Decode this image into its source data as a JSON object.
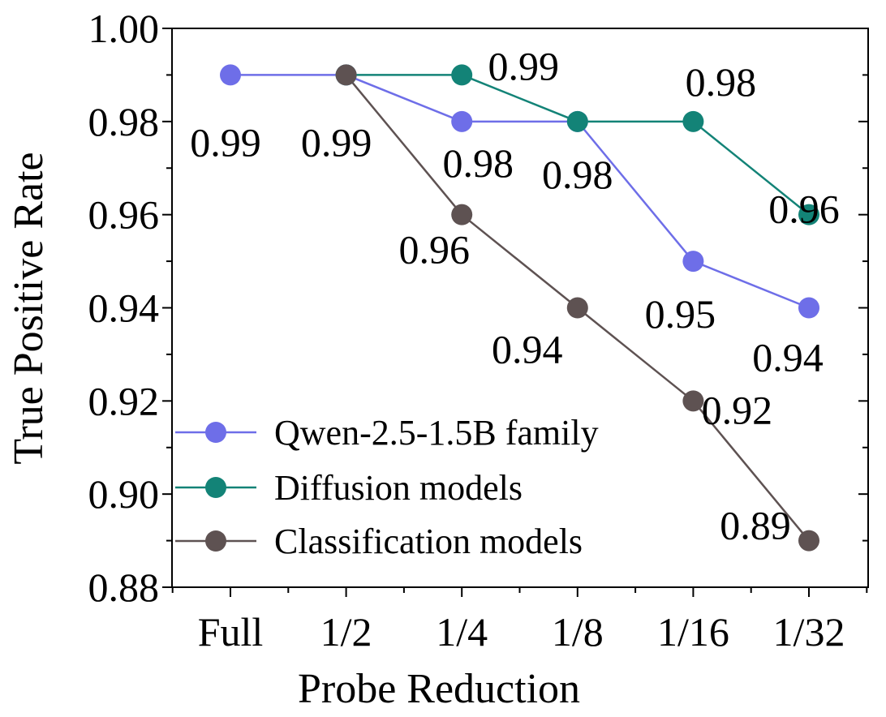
{
  "chart_data": {
    "type": "line",
    "title": "",
    "xlabel": "Probe Reduction",
    "ylabel": "True Positive Rate",
    "categories": [
      "Full",
      "1/2",
      "1/4",
      "1/8",
      "1/16",
      "1/32"
    ],
    "ylim": [
      0.88,
      1.0
    ],
    "yticks": [
      0.88,
      0.9,
      0.92,
      0.94,
      0.96,
      0.98,
      1.0
    ],
    "ytick_labels": [
      "0.88",
      "0.90",
      "0.92",
      "0.94",
      "0.96",
      "0.98",
      "1.00"
    ],
    "grid": false,
    "legend_position": "bottom-left",
    "series": [
      {
        "name": "Qwen-2.5-1.5B family",
        "color": "#6E6EE8",
        "x": [
          0,
          1,
          2,
          3,
          4,
          5
        ],
        "values": [
          0.99,
          0.99,
          0.98,
          0.98,
          0.95,
          0.94
        ],
        "labels": [
          "0.99",
          "0.99",
          "0.98",
          "0.98",
          "0.95",
          "0.94"
        ]
      },
      {
        "name": "Diffusion models",
        "color": "#138377",
        "x": [
          1,
          2,
          3,
          4,
          5
        ],
        "values": [
          0.99,
          0.99,
          0.98,
          0.98,
          0.96
        ],
        "labels": [
          "0.99",
          "0.99",
          "0.98",
          "0.98",
          "0.96"
        ]
      },
      {
        "name": "Classification models",
        "color": "#5E5252",
        "x": [
          1,
          2,
          3,
          4,
          5
        ],
        "values": [
          0.99,
          0.96,
          0.94,
          0.92,
          0.89
        ],
        "labels": [
          "0.99",
          "0.96",
          "0.94",
          "0.92",
          "0.89"
        ]
      }
    ]
  }
}
